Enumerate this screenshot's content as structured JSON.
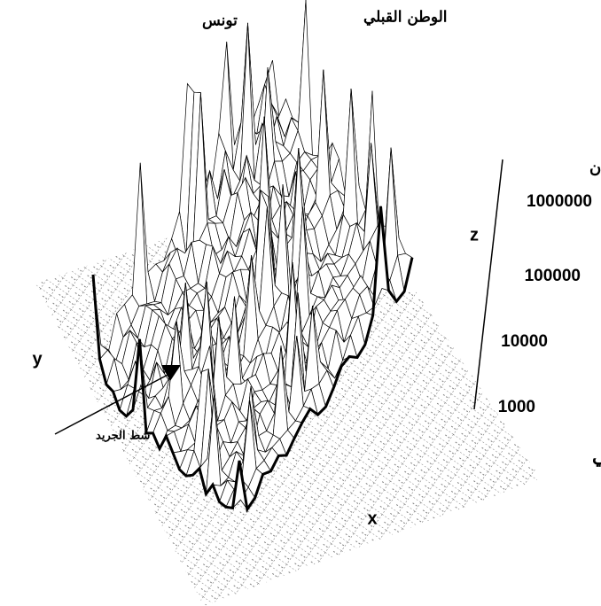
{
  "labels": {
    "tunis": "تونس",
    "cap_bon": "الوطن القبلي",
    "chott": "شط الجريد"
  },
  "axes": {
    "x": "x",
    "y": "y",
    "z": "z"
  },
  "z_axis": {
    "title": "عدد السكان",
    "ticks": [
      "1000000",
      "100000",
      "10000",
      "1000"
    ],
    "scale_note": "تدرج لوغاريتمي"
  }
}
